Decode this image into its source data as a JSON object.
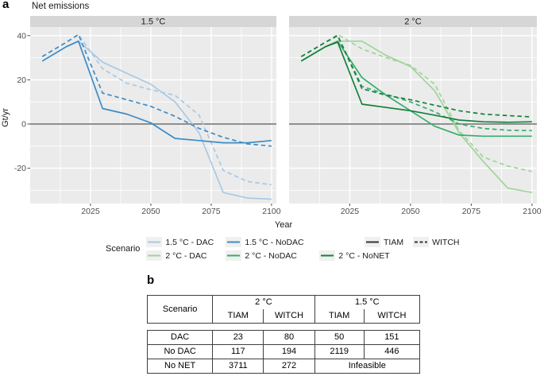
{
  "figure": {
    "panel_a_label": "a",
    "panel_b_label": "b"
  },
  "chart_data": {
    "type": "line",
    "title": "Net emissions",
    "xlabel": "Year",
    "ylabel": "Gt/yr",
    "x_ticks": [
      2025,
      2050,
      2075,
      2100
    ],
    "y_ticks": [
      40,
      20,
      0,
      -20
    ],
    "xlim": [
      2000,
      2102
    ],
    "ylim": [
      -36,
      44
    ],
    "grid": true,
    "zero_line": true,
    "legend_position": "bottom",
    "years": [
      2005,
      2015,
      2020,
      2030,
      2040,
      2050,
      2060,
      2070,
      2080,
      2090,
      2100
    ],
    "panels": [
      {
        "label": "1.5 °C",
        "series": [
          {
            "name": "1.5 °C - DAC",
            "model": "TIAM",
            "style": "solid",
            "color": "#A9C9E5",
            "y": [
              28.5,
              35,
              37.5,
              28,
              23,
              18,
              10,
              -4,
              -31,
              -33.5,
              -34
            ]
          },
          {
            "name": "1.5 °C - DAC",
            "model": "WITCH",
            "style": "dashed",
            "color": "#A9C9E5",
            "y": [
              30.5,
              37,
              40.5,
              25,
              18.5,
              15.5,
              13,
              4,
              -21,
              -26,
              -27.5
            ]
          },
          {
            "name": "1.5 °C - NoDAC",
            "model": "TIAM",
            "style": "solid",
            "color": "#3E8BC6",
            "y": [
              28.5,
              35,
              37.5,
              7,
              4.5,
              0.5,
              -6.5,
              -7.5,
              -8.5,
              -8.5,
              -7.5
            ]
          },
          {
            "name": "1.5 °C - NoDAC",
            "model": "WITCH",
            "style": "dashed",
            "color": "#3E8BC6",
            "y": [
              30.5,
              37,
              40.5,
              14,
              11,
              8,
              3.5,
              -2,
              -6,
              -9,
              -10
            ]
          }
        ]
      },
      {
        "label": "2 °C",
        "series": [
          {
            "name": "2 °C - DAC",
            "model": "TIAM",
            "style": "solid",
            "color": "#9FD49A",
            "y": [
              28.5,
              35,
              37.5,
              37.5,
              31,
              26,
              15,
              -4,
              -17,
              -29,
              -31
            ]
          },
          {
            "name": "2 °C - DAC",
            "model": "WITCH",
            "style": "dashed",
            "color": "#9FD49A",
            "y": [
              30.5,
              37,
              40.5,
              34,
              30,
              26.5,
              18,
              -3,
              -15,
              -19,
              -21.5
            ]
          },
          {
            "name": "2 °C - NoDAC",
            "model": "TIAM",
            "style": "solid",
            "color": "#35AE6B",
            "y": [
              28.5,
              35,
              37.5,
              21,
              13,
              6,
              -1,
              -5,
              -5.5,
              -5.5,
              -5.5
            ]
          },
          {
            "name": "2 °C - NoDAC",
            "model": "WITCH",
            "style": "dashed",
            "color": "#35AE6B",
            "y": [
              30.5,
              37,
              40,
              17,
              13.5,
              10,
              5.5,
              0,
              -2,
              -2.8,
              -3
            ]
          },
          {
            "name": "2 °C - NoNET",
            "model": "TIAM",
            "style": "solid",
            "color": "#15803C",
            "y": [
              28.5,
              35,
              37,
              9,
              7.5,
              6,
              4,
              1.8,
              1,
              0.8,
              1
            ]
          },
          {
            "name": "2 °C - NoNET",
            "model": "WITCH",
            "style": "dashed",
            "color": "#15803C",
            "y": [
              30.5,
              37,
              40,
              16,
              13,
              11,
              8.5,
              6,
              4.5,
              3.8,
              3.2
            ]
          }
        ]
      }
    ]
  },
  "legend": {
    "title": "Scenario",
    "items": [
      {
        "label": "1.5 °C - DAC",
        "color": "#A9C9E5"
      },
      {
        "label": "1.5 °C - NoDAC",
        "color": "#3E8BC6"
      },
      {
        "label": "2 °C - DAC",
        "color": "#9FD49A"
      },
      {
        "label": "2 °C - NoDAC",
        "color": "#35AE6B"
      },
      {
        "label": "2 °C - NoNET",
        "color": "#15803C"
      }
    ],
    "models": [
      {
        "label": "TIAM",
        "style": "solid",
        "color": "#333333"
      },
      {
        "label": "WITCH",
        "style": "dashed",
        "color": "#333333"
      }
    ]
  },
  "table": {
    "header": {
      "scenario": "Scenario",
      "groups": [
        "2 °C",
        "1.5 °C"
      ],
      "models": [
        "TIAM",
        "WITCH",
        "TIAM",
        "WITCH"
      ]
    },
    "rows": [
      {
        "label": "DAC",
        "values": [
          "23",
          "80",
          "50",
          "151"
        ]
      },
      {
        "label": "No DAC",
        "values": [
          "117",
          "194",
          "2119",
          "446"
        ]
      },
      {
        "label": "No NET",
        "values": [
          "3711",
          "272"
        ],
        "merged": "Infeasible"
      }
    ]
  },
  "colors": {
    "panel_bg": "#EBEBEB",
    "strip_bg": "#D6D6D6",
    "grid": "#FFFFFF",
    "zero_line": "#808080",
    "axis_text": "#4D4D4D",
    "title_text": "#1A1A1A",
    "table_border": "#3F3F3F"
  }
}
